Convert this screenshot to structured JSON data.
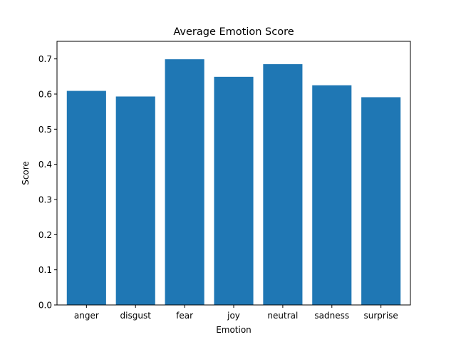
{
  "chart_data": {
    "type": "bar",
    "title": "Average Emotion Score",
    "xlabel": "Emotion",
    "ylabel": "Score",
    "categories": [
      "anger",
      "disgust",
      "fear",
      "joy",
      "neutral",
      "sadness",
      "surprise"
    ],
    "values": [
      0.609,
      0.593,
      0.699,
      0.649,
      0.685,
      0.625,
      0.591
    ],
    "ylim": [
      0,
      0.75
    ],
    "yticks": [
      "0.0",
      "0.1",
      "0.2",
      "0.3",
      "0.4",
      "0.5",
      "0.6",
      "0.7"
    ],
    "grid": false,
    "bar_color": "#1f77b4"
  }
}
